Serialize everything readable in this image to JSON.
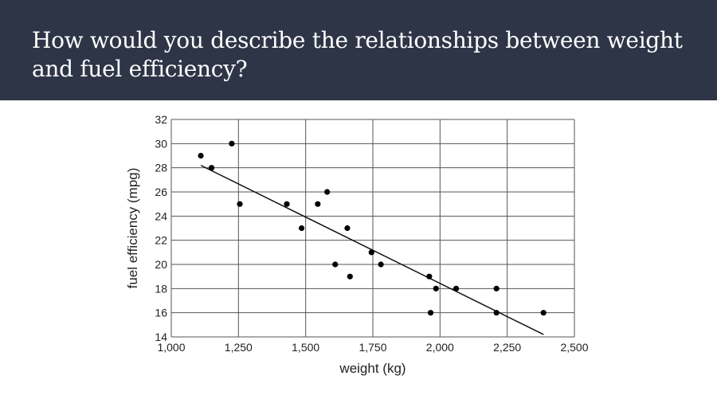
{
  "slide": {
    "title": "How would you describe the relationships between weight and fuel efficiency?"
  },
  "chart_data": {
    "type": "scatter",
    "title": "",
    "xlabel": "weight (kg)",
    "ylabel": "fuel efficiency (mpg)",
    "xlim": [
      1000,
      2500
    ],
    "ylim": [
      14,
      32
    ],
    "x_ticks": [
      1000,
      1250,
      1500,
      1750,
      2000,
      2250,
      2500
    ],
    "x_tick_labels": [
      "1,000",
      "1,250",
      "1,500",
      "1,750",
      "2,000",
      "2,250",
      "2,500"
    ],
    "y_ticks": [
      14,
      16,
      18,
      20,
      22,
      24,
      26,
      28,
      30,
      32
    ],
    "y_tick_labels": [
      "14",
      "16",
      "18",
      "20",
      "22",
      "24",
      "26",
      "28",
      "30",
      "32"
    ],
    "grid": true,
    "marker_color": "#000000",
    "series": [
      {
        "points": [
          [
            1110,
            29
          ],
          [
            1150,
            28
          ],
          [
            1225,
            30
          ],
          [
            1255,
            25
          ],
          [
            1430,
            25
          ],
          [
            1485,
            23
          ],
          [
            1545,
            25
          ],
          [
            1580,
            26
          ],
          [
            1610,
            20
          ],
          [
            1655,
            23
          ],
          [
            1665,
            19
          ],
          [
            1745,
            21
          ],
          [
            1780,
            20
          ],
          [
            1960,
            19
          ],
          [
            1965,
            16
          ],
          [
            1985,
            18
          ],
          [
            2060,
            18
          ],
          [
            2210,
            18
          ],
          [
            2210,
            16
          ],
          [
            2385,
            16
          ]
        ]
      }
    ],
    "trendline": {
      "from": [
        1110,
        28.2
      ],
      "to": [
        2385,
        14.2
      ]
    }
  }
}
